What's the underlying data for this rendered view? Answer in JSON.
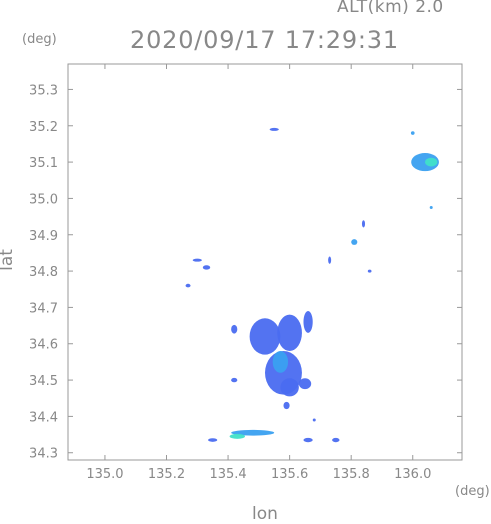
{
  "header": {
    "alt_label": "ALT(km)  2.0",
    "timestamp": "2020/09/17 17:29:31"
  },
  "axes": {
    "x_unit": "(deg)",
    "y_unit": "(deg)",
    "xlabel": "lon",
    "ylabel": "lat"
  },
  "chart_data": {
    "type": "map",
    "title": "2020/09/17 17:29:31",
    "subtitle": "ALT(km)  2.0",
    "xlabel": "lon",
    "ylabel": "lat",
    "xlim": [
      134.88,
      136.16
    ],
    "ylim": [
      34.28,
      35.37
    ],
    "xticks": [
      135.0,
      135.2,
      135.4,
      135.6,
      135.8,
      136.0
    ],
    "xtick_labels": [
      "135.0",
      "135.2",
      "135.4",
      "135.6",
      "135.8",
      "136.0"
    ],
    "yticks": [
      34.3,
      34.4,
      34.5,
      34.6,
      34.7,
      34.8,
      34.9,
      35.0,
      35.1,
      35.2,
      35.3
    ],
    "ytick_labels": [
      "34.3",
      "34.4",
      "34.5",
      "34.6",
      "34.7",
      "34.8",
      "34.9",
      "35.0",
      "35.1",
      "35.2",
      "35.3"
    ],
    "grid": false,
    "colors": {
      "echo_low": "#4a6cf0",
      "echo_mid": "#3aa0f0",
      "echo_high": "#40e0c8"
    },
    "echoes": [
      {
        "lon": 135.55,
        "lat": 35.19,
        "r_lon": 0.015,
        "r_lat": 0.004,
        "color": "echo_low"
      },
      {
        "lon": 136.04,
        "lat": 35.1,
        "r_lon": 0.045,
        "r_lat": 0.025,
        "color": "echo_mid"
      },
      {
        "lon": 136.06,
        "lat": 35.1,
        "r_lon": 0.02,
        "r_lat": 0.012,
        "color": "echo_high"
      },
      {
        "lon": 136.0,
        "lat": 35.18,
        "r_lon": 0.006,
        "r_lat": 0.005,
        "color": "echo_mid"
      },
      {
        "lon": 135.33,
        "lat": 34.81,
        "r_lon": 0.012,
        "r_lat": 0.006,
        "color": "echo_low"
      },
      {
        "lon": 135.27,
        "lat": 34.76,
        "r_lon": 0.008,
        "r_lat": 0.005,
        "color": "echo_low"
      },
      {
        "lon": 135.3,
        "lat": 34.83,
        "r_lon": 0.015,
        "r_lat": 0.004,
        "color": "echo_low"
      },
      {
        "lon": 135.81,
        "lat": 34.88,
        "r_lon": 0.01,
        "r_lat": 0.008,
        "color": "echo_mid"
      },
      {
        "lon": 135.84,
        "lat": 34.93,
        "r_lon": 0.005,
        "r_lat": 0.01,
        "color": "echo_low"
      },
      {
        "lon": 135.86,
        "lat": 34.8,
        "r_lon": 0.006,
        "r_lat": 0.004,
        "color": "echo_low"
      },
      {
        "lon": 135.73,
        "lat": 34.83,
        "r_lon": 0.004,
        "r_lat": 0.01,
        "color": "echo_low"
      },
      {
        "lon": 135.42,
        "lat": 34.64,
        "r_lon": 0.01,
        "r_lat": 0.012,
        "color": "echo_low"
      },
      {
        "lon": 135.52,
        "lat": 34.62,
        "r_lon": 0.05,
        "r_lat": 0.05,
        "color": "echo_low"
      },
      {
        "lon": 135.6,
        "lat": 34.63,
        "r_lon": 0.04,
        "r_lat": 0.05,
        "color": "echo_low"
      },
      {
        "lon": 135.66,
        "lat": 34.66,
        "r_lon": 0.015,
        "r_lat": 0.03,
        "color": "echo_low"
      },
      {
        "lon": 135.58,
        "lat": 34.52,
        "r_lon": 0.06,
        "r_lat": 0.06,
        "color": "echo_low"
      },
      {
        "lon": 135.57,
        "lat": 34.55,
        "r_lon": 0.025,
        "r_lat": 0.03,
        "color": "echo_mid"
      },
      {
        "lon": 135.6,
        "lat": 34.48,
        "r_lon": 0.03,
        "r_lat": 0.025,
        "color": "echo_low"
      },
      {
        "lon": 135.42,
        "lat": 34.5,
        "r_lon": 0.01,
        "r_lat": 0.006,
        "color": "echo_low"
      },
      {
        "lon": 135.65,
        "lat": 34.49,
        "r_lon": 0.02,
        "r_lat": 0.015,
        "color": "echo_low"
      },
      {
        "lon": 135.59,
        "lat": 34.43,
        "r_lon": 0.01,
        "r_lat": 0.01,
        "color": "echo_low"
      },
      {
        "lon": 135.48,
        "lat": 34.355,
        "r_lon": 0.07,
        "r_lat": 0.008,
        "color": "echo_mid"
      },
      {
        "lon": 135.43,
        "lat": 34.345,
        "r_lon": 0.025,
        "r_lat": 0.007,
        "color": "echo_high"
      },
      {
        "lon": 135.35,
        "lat": 34.335,
        "r_lon": 0.015,
        "r_lat": 0.005,
        "color": "echo_low"
      },
      {
        "lon": 135.66,
        "lat": 34.335,
        "r_lon": 0.015,
        "r_lat": 0.006,
        "color": "echo_low"
      },
      {
        "lon": 135.75,
        "lat": 34.335,
        "r_lon": 0.012,
        "r_lat": 0.006,
        "color": "echo_low"
      },
      {
        "lon": 135.68,
        "lat": 34.39,
        "r_lon": 0.003,
        "r_lat": 0.003,
        "color": "echo_low"
      },
      {
        "lon": 136.06,
        "lat": 34.975,
        "r_lon": 0.004,
        "r_lat": 0.003,
        "color": "echo_mid"
      }
    ]
  }
}
